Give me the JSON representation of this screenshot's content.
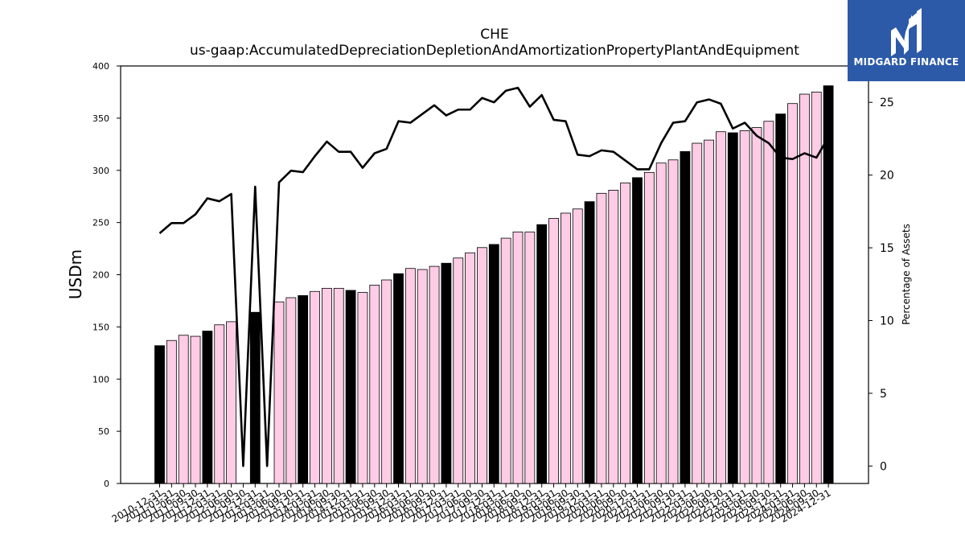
{
  "logo": {
    "text": "MIDGARD FINANCE",
    "background": "#2c5aa8"
  },
  "chart_data": {
    "type": "bar",
    "title": "CHE",
    "subtitle": "us-gaap:AccumulatedDepreciationDepletionAndAmortizationPropertyPlantAndEquipment",
    "ylabel": "USDm",
    "y2label": "Percentage of Assets",
    "ylim": [
      0,
      400
    ],
    "y2lim": [
      -1.2,
      27.5
    ],
    "yticks": [
      0,
      50,
      100,
      150,
      200,
      250,
      300,
      350,
      400
    ],
    "y2ticks": [
      0,
      5,
      10,
      15,
      20,
      25
    ],
    "grid": false,
    "colors": {
      "annual": "#000000",
      "quarterly": "#ffcce6",
      "line": "#000000"
    },
    "categories": [
      "2010-12-31",
      "2011-03-31",
      "2011-06-30",
      "2011-09-30",
      "2011-12-31",
      "2012-03-31",
      "2012-06-30",
      "2012-09-30",
      "2012-12-31",
      "2013-03-31",
      "2013-06-30",
      "2013-09-30",
      "2013-12-31",
      "2014-03-31",
      "2014-06-30",
      "2014-09-30",
      "2014-12-31",
      "2015-03-31",
      "2015-06-30",
      "2015-09-30",
      "2015-12-31",
      "2016-03-31",
      "2016-06-30",
      "2016-09-30",
      "2016-12-31",
      "2017-03-31",
      "2017-06-30",
      "2017-09-30",
      "2017-12-31",
      "2018-03-31",
      "2018-06-30",
      "2018-09-30",
      "2018-12-31",
      "2019-03-31",
      "2019-06-30",
      "2019-09-30",
      "2019-12-31",
      "2020-03-31",
      "2020-06-30",
      "2020-09-30",
      "2020-12-31",
      "2021-03-31",
      "2021-06-30",
      "2021-09-30",
      "2021-12-31",
      "2022-03-31",
      "2022-06-30",
      "2022-09-30",
      "2022-12-31",
      "2023-03-31",
      "2023-06-30",
      "2023-09-30",
      "2023-12-31",
      "2024-03-31",
      "2024-06-30",
      "2024-09-30",
      "2024-12-31"
    ],
    "series": [
      {
        "name": "USDm",
        "values": [
          132,
          137,
          142,
          141,
          146,
          152,
          155,
          0,
          164,
          0,
          174,
          178,
          180,
          184,
          187,
          187,
          185,
          183,
          190,
          195,
          201,
          206,
          205,
          208,
          211,
          216,
          221,
          226,
          229,
          235,
          241,
          241,
          248,
          254,
          259,
          263,
          270,
          278,
          281,
          288,
          293,
          298,
          307,
          310,
          318,
          326,
          329,
          337,
          336,
          338,
          341,
          347,
          354,
          364,
          373,
          375,
          381
        ],
        "kind": [
          "annual",
          "quarterly",
          "quarterly",
          "quarterly",
          "annual",
          "quarterly",
          "quarterly",
          "quarterly",
          "annual",
          "quarterly",
          "quarterly",
          "quarterly",
          "annual",
          "quarterly",
          "quarterly",
          "quarterly",
          "annual",
          "quarterly",
          "quarterly",
          "quarterly",
          "annual",
          "quarterly",
          "quarterly",
          "quarterly",
          "annual",
          "quarterly",
          "quarterly",
          "quarterly",
          "annual",
          "quarterly",
          "quarterly",
          "quarterly",
          "annual",
          "quarterly",
          "quarterly",
          "quarterly",
          "annual",
          "quarterly",
          "quarterly",
          "quarterly",
          "annual",
          "quarterly",
          "quarterly",
          "quarterly",
          "annual",
          "quarterly",
          "quarterly",
          "quarterly",
          "annual",
          "quarterly",
          "quarterly",
          "quarterly",
          "annual",
          "quarterly",
          "quarterly",
          "quarterly",
          "annual"
        ]
      },
      {
        "name": "Percentage of Assets",
        "axis": "right",
        "values": [
          16.0,
          16.7,
          16.7,
          17.3,
          18.4,
          18.2,
          18.7,
          0.0,
          19.2,
          0.0,
          19.5,
          20.3,
          20.2,
          21.3,
          22.3,
          21.6,
          21.6,
          20.5,
          21.5,
          21.8,
          23.7,
          23.6,
          24.2,
          24.8,
          24.1,
          24.5,
          24.5,
          25.3,
          25.0,
          25.8,
          26.0,
          24.7,
          25.5,
          23.8,
          23.7,
          21.4,
          21.3,
          21.7,
          21.6,
          21.0,
          20.4,
          20.4,
          22.2,
          23.6,
          23.7,
          25.0,
          25.2,
          24.9,
          23.2,
          23.6,
          22.7,
          22.2,
          21.2,
          21.1,
          21.5,
          21.2,
          22.6
        ]
      }
    ]
  }
}
